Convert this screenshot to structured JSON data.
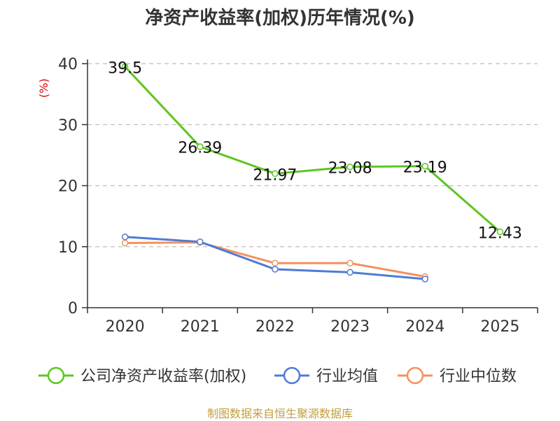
{
  "title": "净资产收益率(加权)历年情况(%)",
  "source": "制图数据来自恒生聚源数据库",
  "colors": {
    "company": "#5cc61f",
    "average": "#4e7bd6",
    "median": "#f4915f"
  },
  "chart_data": {
    "type": "line",
    "title": "净资产收益率(加权)历年情况(%)",
    "ylabel": "(%)",
    "ylim": [
      0,
      40
    ],
    "yticks": [
      "0",
      "10",
      "20",
      "30",
      "40"
    ],
    "categories": [
      "2020",
      "2021",
      "2022",
      "2023",
      "2024",
      "2025"
    ],
    "grid": true,
    "legend_position": "bottom",
    "series": [
      {
        "name": "公司净资产收益率(加权)",
        "key": "company",
        "values": [
          39.5,
          26.39,
          21.97,
          23.08,
          23.19,
          12.43
        ],
        "labels": [
          "39.5",
          "26.39",
          "21.97",
          "23.08",
          "23.19",
          "12.43"
        ]
      },
      {
        "name": "行业均值",
        "key": "average",
        "values": [
          11.6,
          10.8,
          6.3,
          5.8,
          4.7,
          null
        ]
      },
      {
        "name": "行业中位数",
        "key": "median",
        "values": [
          10.6,
          10.7,
          7.3,
          7.3,
          5.1,
          null
        ]
      }
    ]
  }
}
